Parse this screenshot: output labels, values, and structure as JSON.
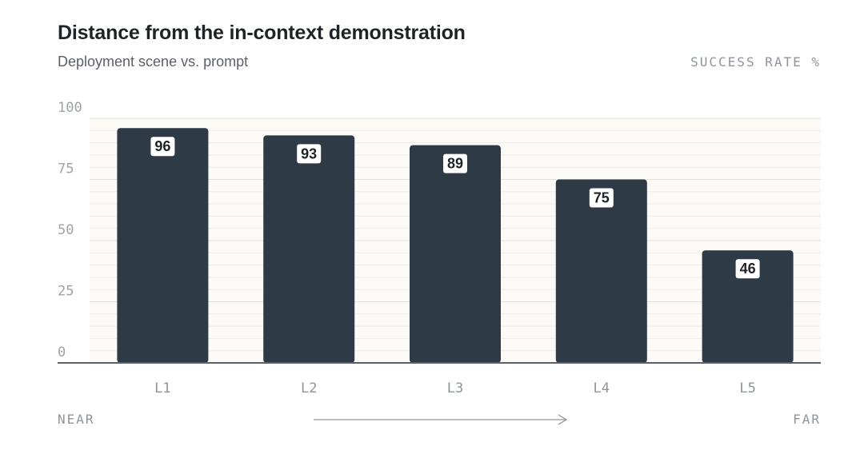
{
  "header": {
    "title": "Distance from the in-context demonstration",
    "subtitle": "Deployment scene vs. prompt",
    "unit_label": "SUCCESS RATE %"
  },
  "x_axis_notes": {
    "near": "NEAR",
    "far": "FAR"
  },
  "colors": {
    "bar": "#2e3a46",
    "label_bg": "#ffffff",
    "grid_major": "#e3e1dc",
    "grid_minor": "#efede8",
    "plot_bg": "#fbfaf7",
    "baseline": "#5a6068"
  },
  "chart_data": {
    "type": "bar",
    "title": "Distance from the in-context demonstration",
    "subtitle": "Deployment scene vs. prompt",
    "categories": [
      "L1",
      "L2",
      "L3",
      "L4",
      "L5"
    ],
    "values": [
      96,
      93,
      89,
      75,
      46
    ],
    "ylabel": "SUCCESS RATE %",
    "ylim": [
      0,
      100
    ],
    "yticks": [
      0,
      25,
      50,
      75,
      100
    ],
    "grid": true
  }
}
